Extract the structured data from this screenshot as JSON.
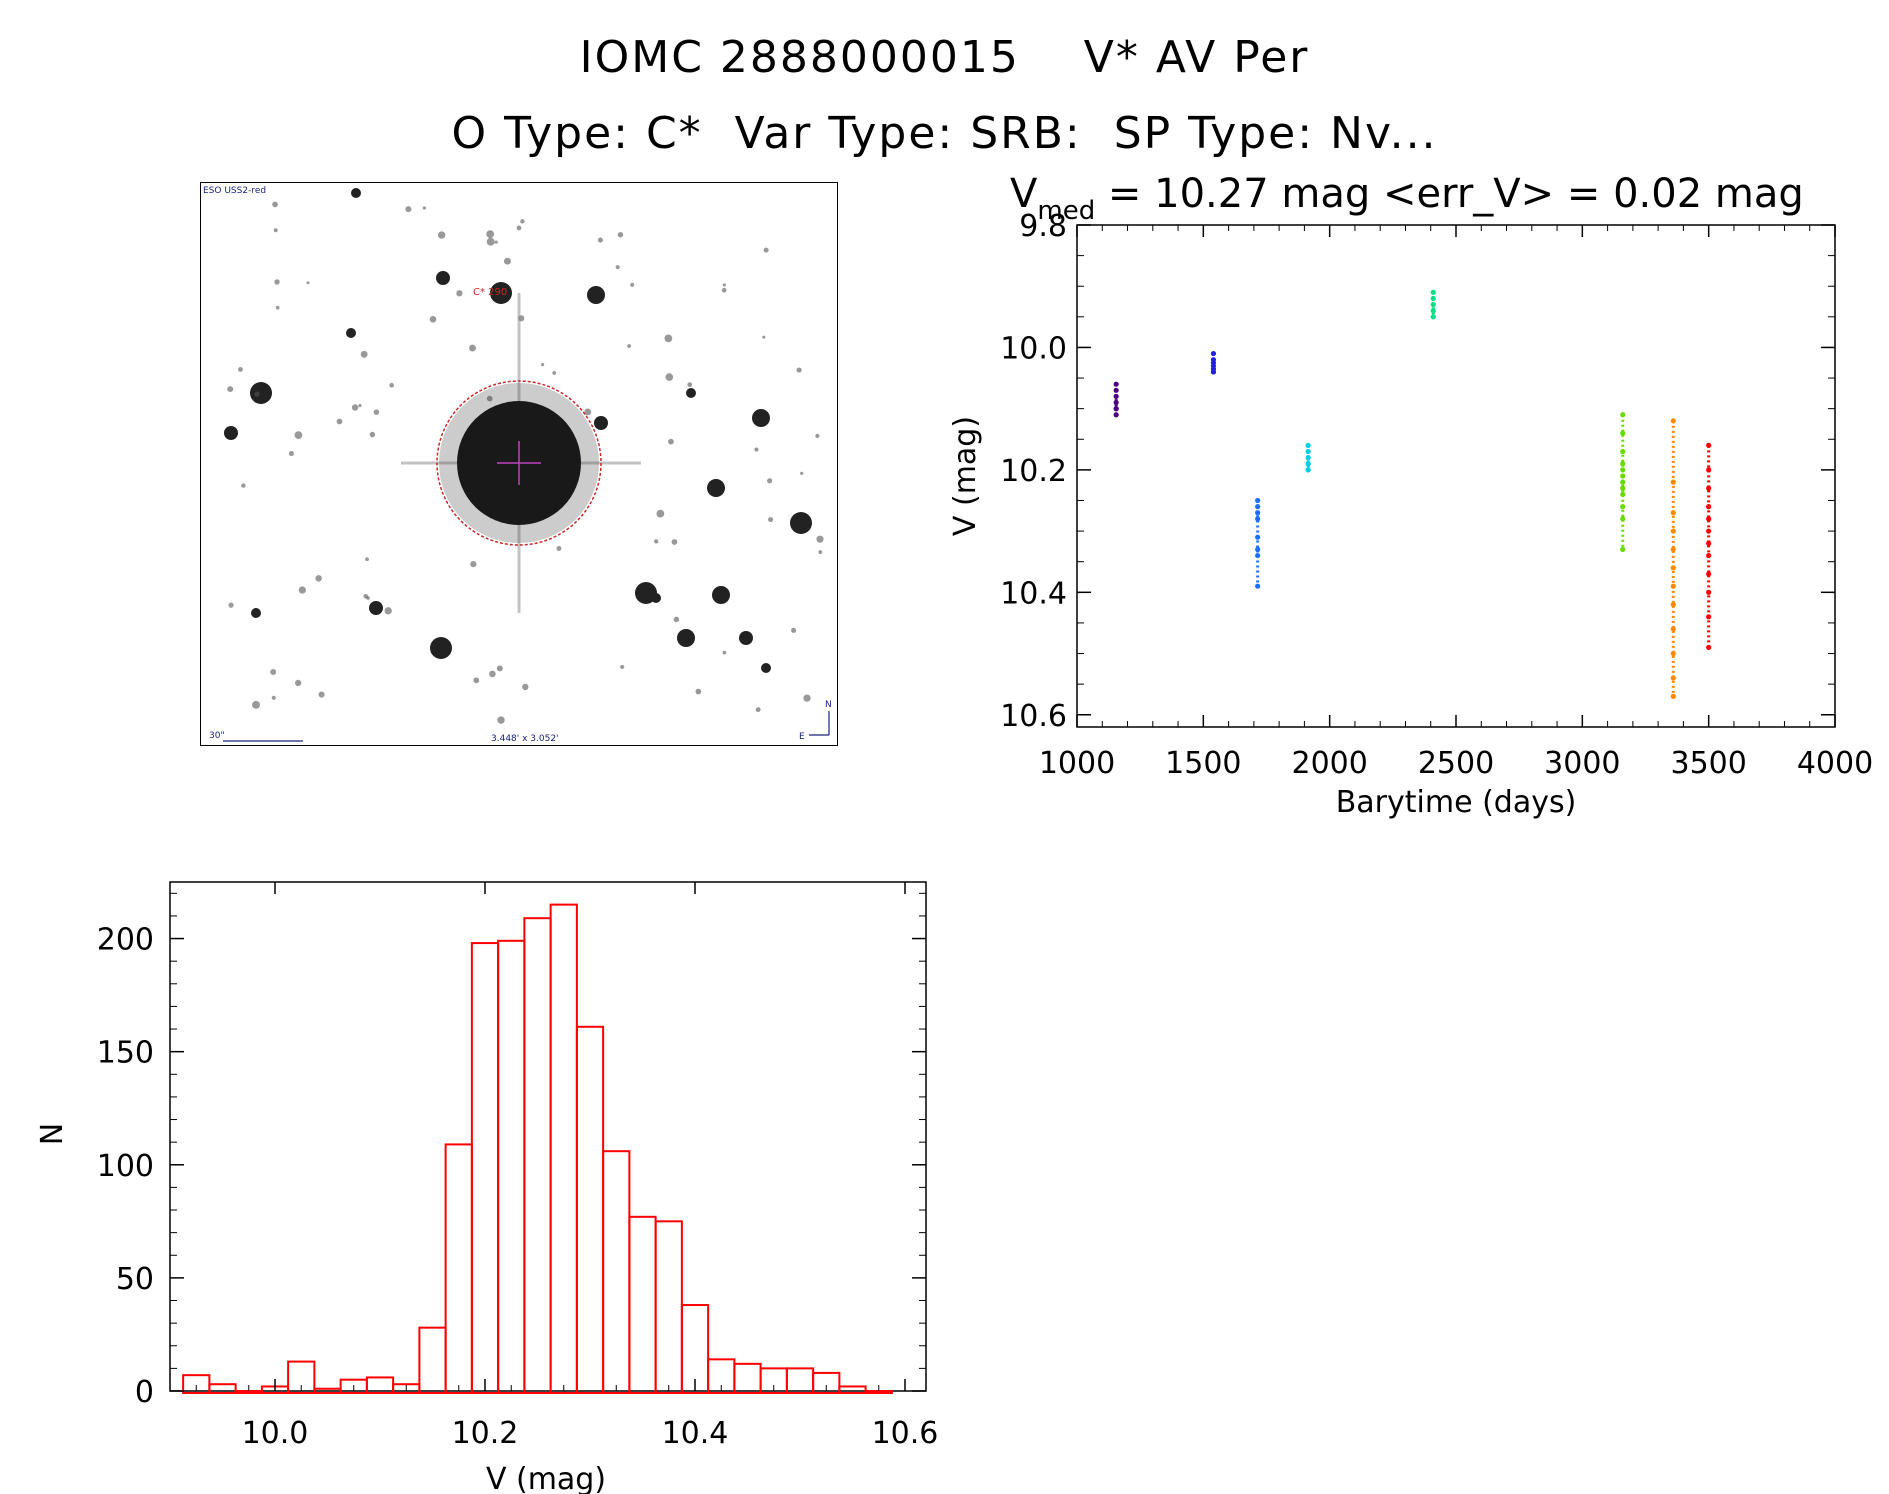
{
  "header": {
    "title_line1": "IOMC 2888000015    V* AV Per",
    "title_line2": "O Type: C*  Var Type: SRB:  SP Type: Nv..."
  },
  "finding_chart": {
    "survey_label": "ESO USS2-red",
    "target_label": "C* 290",
    "scale_label": "30\"",
    "fov_label": "3.448' x 3.052'",
    "compass_n": "N",
    "compass_e": "E",
    "colors": {
      "label": "#1a237e",
      "marker": "#c62828"
    }
  },
  "light_curve": {
    "stats_vmed_prefix": "V",
    "stats_vmed_sub": "med",
    "stats_text": " = 10.27 mag <err_V> = 0.02 mag",
    "xlabel": "Barytime (days)",
    "ylabel": "V (mag)",
    "xlim": [
      1000,
      4000
    ],
    "ylim": [
      9.8,
      10.62
    ],
    "xticks": [
      "1000",
      "1500",
      "2000",
      "2500",
      "3000",
      "3500",
      "4000"
    ],
    "yticks": [
      "9.8",
      "10.0",
      "10.2",
      "10.4",
      "10.6"
    ],
    "xtick_values": [
      1000,
      1500,
      2000,
      2500,
      3000,
      3500,
      4000
    ],
    "ytick_values": [
      9.8,
      10.0,
      10.2,
      10.4,
      10.6
    ]
  },
  "histogram": {
    "xlabel": "V (mag)",
    "ylabel": "N",
    "bar_color": "#ff0000",
    "xlim": [
      9.9,
      10.62
    ],
    "ylim": [
      0,
      225
    ],
    "xticks": [
      "10.0",
      "10.2",
      "10.4",
      "10.6"
    ],
    "yticks": [
      "0",
      "50",
      "100",
      "150",
      "200"
    ],
    "xtick_values": [
      10.0,
      10.2,
      10.4,
      10.6
    ],
    "ytick_values": [
      0,
      50,
      100,
      150,
      200
    ]
  },
  "chart_data": [
    {
      "type": "scatter",
      "title": "V med = 10.27 mag <err_V> = 0.02 mag",
      "xlabel": "Barytime (days)",
      "ylabel": "V (mag)",
      "xlim": [
        1000,
        4000
      ],
      "ylim": [
        10.62,
        9.8
      ],
      "y_inverted": true,
      "series": [
        {
          "color": "#4b0082",
          "x": [
            1155,
            1155,
            1155,
            1155,
            1155,
            1155,
            1155
          ],
          "y": [
            10.06,
            10.07,
            10.08,
            10.09,
            10.1,
            10.1,
            10.11
          ]
        },
        {
          "color": "#2222dd",
          "x": [
            1540,
            1540,
            1540,
            1540,
            1540,
            1540,
            1540
          ],
          "y": [
            10.01,
            10.02,
            10.025,
            10.03,
            10.035,
            10.04,
            10.04
          ]
        },
        {
          "color": "#1f6fff",
          "x": [
            1715,
            1715,
            1715,
            1715,
            1715,
            1715,
            1715,
            1715
          ],
          "y": [
            10.25,
            10.26,
            10.27,
            10.28,
            10.31,
            10.33,
            10.34,
            10.39
          ]
        },
        {
          "color": "#00d0e0",
          "x": [
            1915,
            1915,
            1915,
            1915,
            1915
          ],
          "y": [
            10.16,
            10.17,
            10.18,
            10.19,
            10.2
          ]
        },
        {
          "color": "#00e080",
          "x": [
            2410,
            2410,
            2410,
            2410,
            2410
          ],
          "y": [
            9.91,
            9.92,
            9.93,
            9.94,
            9.95
          ]
        },
        {
          "color": "#66dd00",
          "x": [
            3160,
            3160,
            3160,
            3160,
            3160,
            3160,
            3160,
            3160,
            3160,
            3160,
            3160,
            3160
          ],
          "y": [
            10.11,
            10.14,
            10.17,
            10.19,
            10.2,
            10.21,
            10.22,
            10.23,
            10.24,
            10.26,
            10.28,
            10.33
          ]
        },
        {
          "color": "#ff8800",
          "x": [
            3360,
            3360,
            3360,
            3360,
            3360,
            3360,
            3360,
            3360,
            3360,
            3360,
            3360,
            3360
          ],
          "y": [
            10.12,
            10.22,
            10.27,
            10.3,
            10.33,
            10.36,
            10.39,
            10.42,
            10.46,
            10.5,
            10.54,
            10.57
          ]
        },
        {
          "color": "#ff0000",
          "x": [
            3500,
            3500,
            3500,
            3500,
            3500,
            3500,
            3500,
            3500,
            3500,
            3500,
            3500,
            3500
          ],
          "y": [
            10.16,
            10.2,
            10.23,
            10.26,
            10.28,
            10.3,
            10.32,
            10.34,
            10.37,
            10.4,
            10.44,
            10.49
          ]
        }
      ]
    },
    {
      "type": "bar",
      "subtype": "histogram",
      "xlabel": "V (mag)",
      "ylabel": "N",
      "xlim": [
        9.9,
        10.62
      ],
      "ylim": [
        0,
        225
      ],
      "bin_width": 0.025,
      "bin_starts": [
        9.9125,
        9.9375,
        9.9625,
        9.9875,
        10.0125,
        10.0375,
        10.0625,
        10.0875,
        10.1125,
        10.1375,
        10.1625,
        10.1875,
        10.2125,
        10.2375,
        10.2625,
        10.2875,
        10.3125,
        10.3375,
        10.3625,
        10.3875,
        10.4125,
        10.4375,
        10.4625,
        10.4875,
        10.5125,
        10.5375,
        10.5625
      ],
      "values": [
        7,
        3,
        0,
        2,
        13,
        1,
        5,
        6,
        3,
        28,
        109,
        198,
        199,
        209,
        215,
        161,
        106,
        77,
        75,
        38,
        14,
        12,
        10,
        10,
        8,
        2,
        0
      ]
    }
  ]
}
